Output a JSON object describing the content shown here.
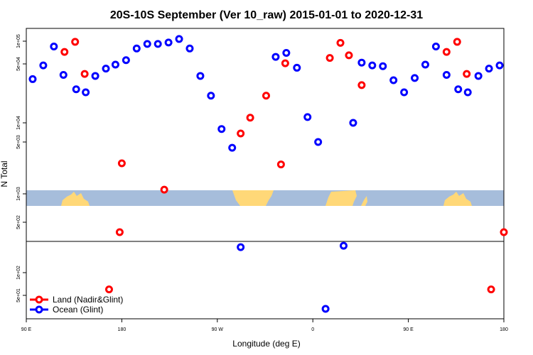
{
  "chart_data": {
    "type": "scatter",
    "title": "20S-10S September (Ver 10_raw)   2015-01-01 to 2020-12-31",
    "xlabel": "Longitude (deg E)",
    "ylabel": "N Total",
    "x_ticks": [
      {
        "value": 90,
        "label": "90 E"
      },
      {
        "value": 180,
        "label": "180"
      },
      {
        "value": 270,
        "label": "90 W"
      },
      {
        "value": 360,
        "label": "0"
      },
      {
        "value": 450,
        "label": "90 E"
      },
      {
        "value": 540,
        "label": "180"
      }
    ],
    "xlim": [
      90,
      540
    ],
    "y_scale": "log, split axis",
    "y_ticks_upper": [
      {
        "value": 1000,
        "label": "1e+03"
      },
      {
        "value": 5000,
        "label": "5e+03"
      },
      {
        "value": 10000,
        "label": "1e+04"
      },
      {
        "value": 50000,
        "label": "5e+04"
      },
      {
        "value": 100000,
        "label": "1e+05"
      }
    ],
    "y_ticks_lower": [
      {
        "value": 50,
        "label": "5e+01"
      },
      {
        "value": 100,
        "label": "1e+02"
      },
      {
        "value": 500,
        "label": "5e+02"
      }
    ],
    "legend_position": "bottom-left",
    "series": [
      {
        "name": "Land (Nadir&Glint)",
        "color": "#ff0000",
        "points": [
          {
            "x": 126,
            "y": 72000
          },
          {
            "x": 136,
            "y": 98000
          },
          {
            "x": 145,
            "y": 38000
          },
          {
            "x": 168,
            "y": 60
          },
          {
            "x": 178,
            "y": 350
          },
          {
            "x": 180,
            "y": 2000
          },
          {
            "x": 220,
            "y": 1100
          },
          {
            "x": 292,
            "y": 6800
          },
          {
            "x": 301,
            "y": 11500
          },
          {
            "x": 316,
            "y": 21000
          },
          {
            "x": 330,
            "y": 1950
          },
          {
            "x": 334,
            "y": 51000
          },
          {
            "x": 376,
            "y": 60000
          },
          {
            "x": 386,
            "y": 95000
          },
          {
            "x": 394,
            "y": 65000
          },
          {
            "x": 406,
            "y": 28000
          },
          {
            "x": 486,
            "y": 72000
          },
          {
            "x": 496,
            "y": 98000
          },
          {
            "x": 505,
            "y": 38000
          },
          {
            "x": 528,
            "y": 60
          },
          {
            "x": 540,
            "y": 350
          }
        ]
      },
      {
        "name": "Ocean (Glint)",
        "color": "#0000ff",
        "points": [
          {
            "x": 96,
            "y": 33000
          },
          {
            "x": 106,
            "y": 48000
          },
          {
            "x": 116,
            "y": 85000
          },
          {
            "x": 125,
            "y": 37000
          },
          {
            "x": 137,
            "y": 25000
          },
          {
            "x": 146,
            "y": 23000
          },
          {
            "x": 155,
            "y": 36000
          },
          {
            "x": 165,
            "y": 44000
          },
          {
            "x": 174,
            "y": 49000
          },
          {
            "x": 184,
            "y": 56000
          },
          {
            "x": 194,
            "y": 80000
          },
          {
            "x": 204,
            "y": 92000
          },
          {
            "x": 214,
            "y": 92000
          },
          {
            "x": 224,
            "y": 96000
          },
          {
            "x": 234,
            "y": 105000
          },
          {
            "x": 244,
            "y": 80000
          },
          {
            "x": 254,
            "y": 36000
          },
          {
            "x": 264,
            "y": 21000
          },
          {
            "x": 274,
            "y": 8000
          },
          {
            "x": 284,
            "y": 3900
          },
          {
            "x": 292,
            "y": 220
          },
          {
            "x": 325,
            "y": 62000
          },
          {
            "x": 335,
            "y": 70000
          },
          {
            "x": 345,
            "y": 45000
          },
          {
            "x": 355,
            "y": 11700
          },
          {
            "x": 365,
            "y": 5000
          },
          {
            "x": 372,
            "y": 30
          },
          {
            "x": 389,
            "y": 230
          },
          {
            "x": 398,
            "y": 10000
          },
          {
            "x": 406,
            "y": 52000
          },
          {
            "x": 416,
            "y": 48000
          },
          {
            "x": 426,
            "y": 47000
          },
          {
            "x": 436,
            "y": 32000
          },
          {
            "x": 446,
            "y": 23000
          },
          {
            "x": 456,
            "y": 34000
          },
          {
            "x": 466,
            "y": 49000
          },
          {
            "x": 476,
            "y": 85000
          },
          {
            "x": 486,
            "y": 37000
          },
          {
            "x": 497,
            "y": 25000
          },
          {
            "x": 506,
            "y": 23000
          },
          {
            "x": 516,
            "y": 36000
          },
          {
            "x": 526,
            "y": 44000
          },
          {
            "x": 536,
            "y": 48000
          }
        ]
      }
    ],
    "background_map": "continent outline band (land yellow, ocean blue-gray)"
  }
}
